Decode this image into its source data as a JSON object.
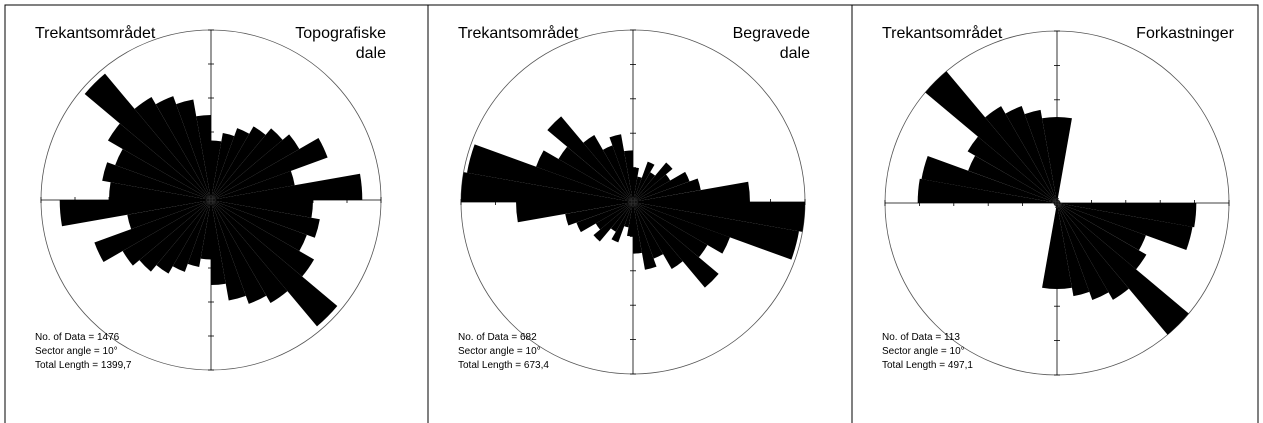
{
  "chart_data": [
    {
      "type": "rose",
      "title": "Trekantsområdet",
      "subtitle": [
        "Topografiske",
        "dale"
      ],
      "info": [
        "No. of Data = 1476",
        "Sector angle = 10°",
        "Total Length = 1399,7"
      ],
      "values": [
        0.35,
        0.4,
        0.45,
        0.5,
        0.55,
        0.6,
        0.73,
        0.5,
        0.89,
        0.6,
        0.65,
        0.6,
        0.7,
        0.97,
        0.7,
        0.65,
        0.6,
        0.5
      ],
      "color": "#000000",
      "rlim": [
        0,
        1
      ]
    },
    {
      "type": "rose",
      "title": "Trekantsområdet",
      "subtitle": [
        "Begravede",
        "dale"
      ],
      "info": [
        "No. of Data = 682",
        "Sector angle = 10°",
        "Total Length = 673,4"
      ],
      "values": [
        0.2,
        0.15,
        0.25,
        0.2,
        0.3,
        0.25,
        0.35,
        0.4,
        0.68,
        1.0,
        0.98,
        0.6,
        0.5,
        0.65,
        0.45,
        0.35,
        0.4,
        0.3
      ],
      "color": "#000000",
      "rlim": [
        0,
        1
      ]
    },
    {
      "type": "rose",
      "title": "Trekantsområdet",
      "subtitle": [
        "Forkastninger"
      ],
      "info": [
        "No. of Data = 113",
        "Sector angle = 10°",
        "Total Length = 497,1"
      ],
      "values": [
        0.5,
        0.03,
        0.02,
        0.02,
        0.02,
        0.02,
        0.02,
        0.02,
        0.02,
        0.81,
        0.8,
        0.55,
        0.6,
        1.0,
        0.65,
        0.6,
        0.55,
        0.5
      ],
      "color": "#000000",
      "rlim": [
        0,
        1
      ]
    }
  ]
}
